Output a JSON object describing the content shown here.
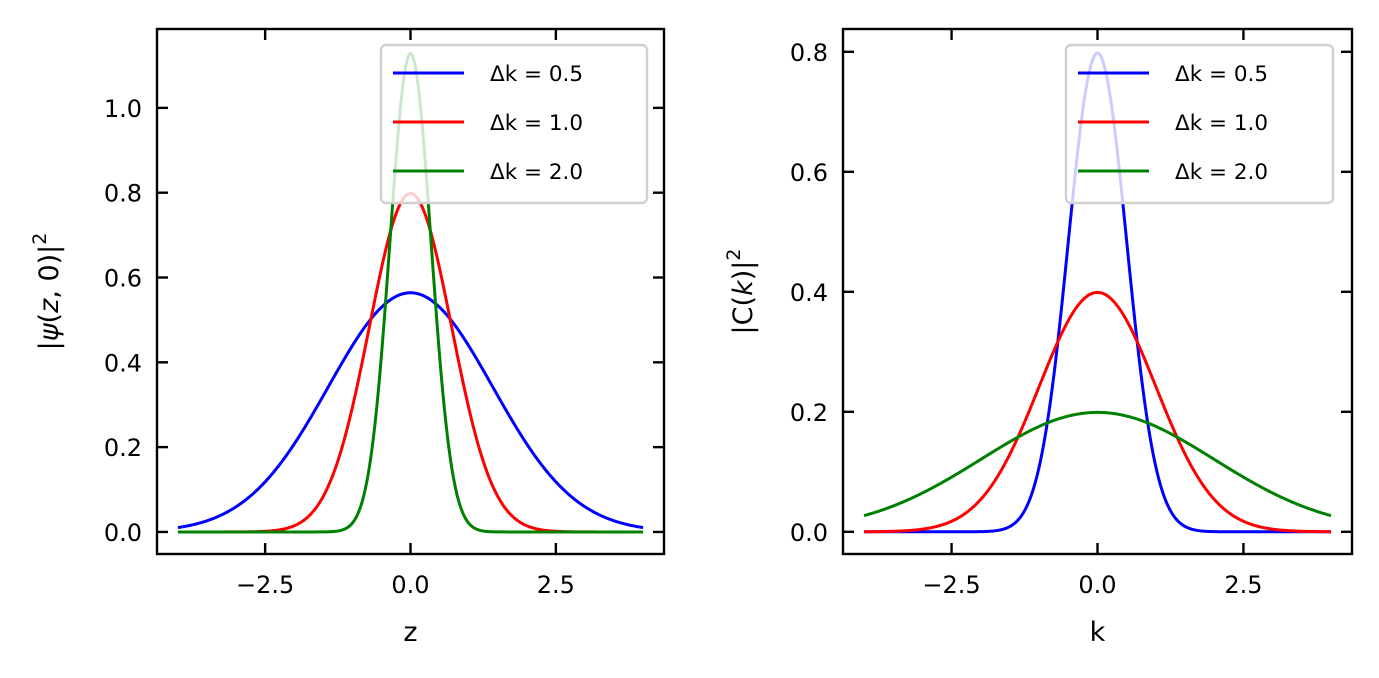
{
  "chart_data": [
    {
      "type": "line",
      "id": "left",
      "title": "",
      "xlabel": "z",
      "ylabel": "|ψ(z, 0)|²",
      "ylabel_parts": {
        "prefix": "|",
        "symbol": "ψ",
        "paren_open": "(",
        "var": "z",
        "rest": ", 0)|",
        "sup": "2"
      },
      "xlim": [
        -4.36,
        4.36
      ],
      "ylim": [
        -0.052,
        1.186
      ],
      "x_range": [
        -4,
        4
      ],
      "xticks": [
        -2.5,
        0.0,
        2.5
      ],
      "xtick_labels": [
        "−2.5",
        "0.0",
        "2.5"
      ],
      "yticks": [
        0.0,
        0.2,
        0.4,
        0.6,
        0.8,
        1.0
      ],
      "ytick_labels": [
        "0.0",
        "0.2",
        "0.4",
        "0.6",
        "0.8",
        "1.0"
      ],
      "grid": false,
      "legend_position": "upper-right",
      "series": [
        {
          "name": "Δk = 0.5",
          "color": "#0000ff",
          "peak": 0.564,
          "sigma": 1.414
        },
        {
          "name": "Δk = 1.0",
          "color": "#ff0000",
          "peak": 0.798,
          "sigma": 0.707
        },
        {
          "name": "Δk = 2.0",
          "color": "#008000",
          "peak": 1.128,
          "sigma": 0.354
        }
      ]
    },
    {
      "type": "line",
      "id": "right",
      "title": "",
      "xlabel": "k",
      "ylabel": "|C(k)|²",
      "ylabel_parts": {
        "prefix": "|",
        "symbol": "C",
        "paren_open": "(",
        "var": "k",
        "rest": ")|",
        "sup": "2"
      },
      "xlim": [
        -4.36,
        4.36
      ],
      "ylim": [
        -0.037,
        0.838
      ],
      "x_range": [
        -4,
        4
      ],
      "xticks": [
        -2.5,
        0.0,
        2.5
      ],
      "xtick_labels": [
        "−2.5",
        "0.0",
        "2.5"
      ],
      "yticks": [
        0.0,
        0.2,
        0.4,
        0.6,
        0.8
      ],
      "ytick_labels": [
        "0.0",
        "0.2",
        "0.4",
        "0.6",
        "0.8"
      ],
      "grid": false,
      "legend_position": "upper-right",
      "series": [
        {
          "name": "Δk = 0.5",
          "color": "#0000ff",
          "peak": 0.798,
          "sigma": 0.5
        },
        {
          "name": "Δk = 1.0",
          "color": "#ff0000",
          "peak": 0.399,
          "sigma": 1.0
        },
        {
          "name": "Δk = 2.0",
          "color": "#008000",
          "peak": 0.199,
          "sigma": 2.0
        }
      ]
    }
  ]
}
